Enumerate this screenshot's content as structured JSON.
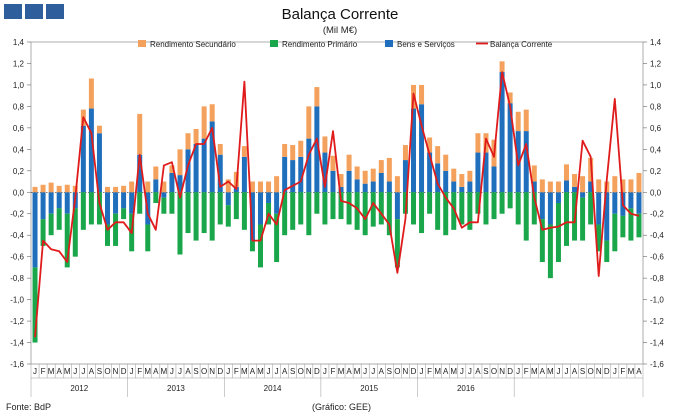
{
  "header": {
    "title": "Balança Corrente",
    "subtitle": "(Mil M€)",
    "logo_icon": "bank-logo-icon"
  },
  "footer": {
    "source": "Fonte: BdP",
    "graph_note": "(Gráfico: GEE)"
  },
  "colors": {
    "secondary": "#f4a15d",
    "primary": "#1aa64a",
    "goods_services": "#1f6fbd",
    "current_account": "#e01b1b",
    "logo": "#2e5e9b"
  },
  "chart_data": {
    "type": "bar",
    "title": "Balança Corrente",
    "subtitle": "(Mil M€)",
    "stacked": true,
    "ylim": [
      -1.6,
      1.4
    ],
    "yticks": [
      "1,4",
      "1,2",
      "1,0",
      "0,8",
      "0,6",
      "0,4",
      "0,2",
      "0,0",
      "-0,2",
      "-0,4",
      "-0,6",
      "-0,8",
      "-1,0",
      "-1,2",
      "-1,4",
      "-1,6"
    ],
    "ytick_values": [
      1.4,
      1.2,
      1.0,
      0.8,
      0.6,
      0.4,
      0.2,
      0.0,
      -0.2,
      -0.4,
      -0.6,
      -0.8,
      -1.0,
      -1.2,
      -1.4,
      -1.6
    ],
    "month_labels": [
      "J",
      "F",
      "M",
      "A",
      "M",
      "J",
      "J",
      "A",
      "S",
      "O",
      "N",
      "D"
    ],
    "years": [
      "2012",
      "2013",
      "2014",
      "2015",
      "2016"
    ],
    "legend": [
      "Rendimento Secundário",
      "Rendimento Primário",
      "Bens e Serviços",
      "Balança Corrente"
    ],
    "legend_position": "top",
    "series": [
      {
        "name": "Bens e Serviços",
        "type": "bar",
        "values": [
          -0.7,
          -0.25,
          -0.2,
          -0.15,
          -0.2,
          -0.15,
          0.62,
          0.78,
          0.55,
          -0.3,
          -0.2,
          -0.15,
          -0.2,
          0.35,
          -0.3,
          0.12,
          -0.05,
          0.18,
          0.16,
          0.4,
          0.45,
          0.5,
          0.66,
          0.35,
          -0.12,
          0.05,
          0.33,
          -0.45,
          -0.3,
          -0.1,
          -0.2,
          0.33,
          0.3,
          0.33,
          0.5,
          0.8,
          0.37,
          0.2,
          0.05,
          0.2,
          0.12,
          0.08,
          0.1,
          0.18,
          0.1,
          -0.25,
          0.3,
          0.78,
          0.82,
          0.37,
          0.27,
          0.2,
          0.1,
          0.05,
          0.1,
          0.37,
          0.37,
          0.24,
          1.12,
          0.83,
          0.57,
          0.57,
          0.1,
          -0.25,
          -0.3,
          -0.1,
          0.11,
          0.05,
          -0.05,
          0.1,
          -0.3,
          -0.45,
          -0.2,
          -0.22,
          -0.15,
          -0.2
        ]
      },
      {
        "name": "Rendimento Primário",
        "type": "bar",
        "values": [
          -0.7,
          -0.25,
          -0.2,
          -0.2,
          -0.5,
          -0.45,
          -0.35,
          -0.3,
          -0.3,
          -0.2,
          -0.3,
          -0.1,
          -0.35,
          -0.2,
          -0.25,
          -0.1,
          -0.15,
          -0.2,
          -0.58,
          -0.38,
          -0.45,
          -0.38,
          -0.45,
          -0.3,
          -0.2,
          -0.25,
          -0.35,
          -0.1,
          -0.4,
          -0.2,
          -0.45,
          -0.4,
          -0.35,
          -0.3,
          -0.4,
          -0.2,
          -0.3,
          -0.25,
          -0.25,
          -0.3,
          -0.35,
          -0.4,
          -0.32,
          -0.3,
          -0.4,
          -0.45,
          -0.2,
          -0.3,
          -0.38,
          -0.2,
          -0.35,
          -0.4,
          -0.35,
          -0.3,
          -0.35,
          -0.2,
          -0.3,
          -0.25,
          -0.2,
          -0.15,
          -0.3,
          -0.45,
          -0.3,
          -0.4,
          -0.5,
          -0.55,
          -0.5,
          -0.45,
          -0.4,
          -0.3,
          -0.25,
          -0.2,
          -0.35,
          -0.2,
          -0.3,
          -0.22
        ]
      },
      {
        "name": "Rendimento Secundário",
        "type": "bar",
        "values": [
          0.05,
          0.07,
          0.09,
          0.06,
          0.07,
          0.06,
          0.15,
          0.28,
          0.07,
          0.05,
          0.05,
          0.06,
          0.1,
          0.38,
          0.1,
          0.12,
          0.1,
          0.07,
          0.24,
          0.15,
          0.14,
          0.3,
          0.16,
          0.1,
          0.12,
          0.14,
          0.1,
          0.1,
          0.1,
          0.1,
          0.15,
          0.12,
          0.14,
          0.15,
          0.3,
          0.18,
          0.15,
          0.14,
          0.12,
          0.15,
          0.12,
          0.12,
          0.12,
          0.12,
          0.22,
          0.15,
          0.14,
          0.22,
          0.18,
          0.14,
          0.16,
          0.15,
          0.12,
          0.12,
          0.1,
          0.18,
          0.18,
          0.25,
          0.1,
          0.1,
          0.18,
          0.2,
          0.15,
          0.12,
          0.1,
          0.1,
          0.15,
          0.12,
          0.15,
          0.22,
          0.12,
          0.1,
          0.15,
          0.12,
          0.12,
          0.18
        ]
      },
      {
        "name": "Balança Corrente",
        "type": "line",
        "values": [
          -1.35,
          -0.45,
          -0.53,
          -0.55,
          -0.65,
          -0.05,
          0.7,
          0.55,
          -0.1,
          -0.35,
          -0.28,
          -0.28,
          -0.38,
          0.35,
          -0.2,
          -0.35,
          0.25,
          0.28,
          -0.05,
          0.25,
          0.45,
          0.45,
          0.6,
          0.05,
          0.1,
          0.03,
          1.03,
          -0.45,
          -0.45,
          -0.2,
          -0.3,
          0.02,
          0.06,
          0.1,
          0.35,
          0.5,
          0.05,
          0.57,
          -0.08,
          -0.1,
          -0.15,
          -0.25,
          -0.1,
          -0.2,
          -0.3,
          -0.75,
          -0.25,
          0.92,
          0.62,
          0.35,
          0.08,
          -0.05,
          -0.15,
          -0.33,
          -0.28,
          -0.28,
          0.5,
          0.33,
          1.12,
          0.8,
          0.25,
          0.45,
          -0.05,
          -0.35,
          -0.33,
          -0.32,
          -0.28,
          -0.28,
          0.48,
          0.33,
          -0.78,
          0.12,
          0.87,
          -0.12,
          -0.2,
          -0.22
        ]
      }
    ]
  }
}
